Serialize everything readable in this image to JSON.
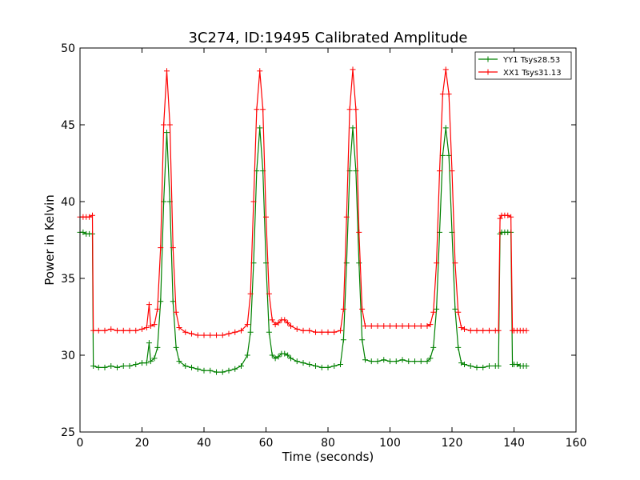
{
  "chart_data": {
    "type": "line",
    "title": "3C274, ID:19495 Calibrated Amplitude",
    "xlabel": "Time (seconds)",
    "ylabel": "Power in Kelvin",
    "xlim": [
      0,
      160
    ],
    "ylim": [
      25,
      50
    ],
    "xticks": [
      0,
      20,
      40,
      60,
      80,
      100,
      120,
      140,
      160
    ],
    "yticks": [
      25,
      30,
      35,
      40,
      45,
      50
    ],
    "grid": false,
    "legend_position": "top-right",
    "marker": "+",
    "series": [
      {
        "name": "YY1 Tsys28.53",
        "color": "#008000",
        "points": [
          [
            0,
            38.0
          ],
          [
            1,
            38.0
          ],
          [
            2,
            37.9
          ],
          [
            3,
            37.9
          ],
          [
            4,
            37.9
          ],
          [
            4.3,
            29.3
          ],
          [
            6,
            29.2
          ],
          [
            8,
            29.2
          ],
          [
            10,
            29.3
          ],
          [
            12,
            29.2
          ],
          [
            14,
            29.3
          ],
          [
            16,
            29.3
          ],
          [
            18,
            29.4
          ],
          [
            20,
            29.5
          ],
          [
            21.5,
            29.5
          ],
          [
            22.3,
            30.8
          ],
          [
            22.8,
            29.6
          ],
          [
            24,
            29.8
          ],
          [
            25,
            30.5
          ],
          [
            26,
            33.5
          ],
          [
            27,
            40.0
          ],
          [
            28,
            44.5
          ],
          [
            29,
            40.0
          ],
          [
            30,
            33.5
          ],
          [
            31,
            30.5
          ],
          [
            32,
            29.6
          ],
          [
            34,
            29.3
          ],
          [
            36,
            29.2
          ],
          [
            38,
            29.1
          ],
          [
            40,
            29.0
          ],
          [
            42,
            29.0
          ],
          [
            44,
            28.9
          ],
          [
            46,
            28.9
          ],
          [
            48,
            29.0
          ],
          [
            50,
            29.1
          ],
          [
            52,
            29.3
          ],
          [
            54,
            30.0
          ],
          [
            55,
            31.5
          ],
          [
            56,
            36.0
          ],
          [
            57,
            42.0
          ],
          [
            58,
            44.8
          ],
          [
            59,
            42.0
          ],
          [
            60,
            36.0
          ],
          [
            61,
            31.5
          ],
          [
            62,
            30.0
          ],
          [
            63,
            29.8
          ],
          [
            64,
            29.9
          ],
          [
            65,
            30.1
          ],
          [
            66,
            30.1
          ],
          [
            67,
            30.0
          ],
          [
            68,
            29.8
          ],
          [
            70,
            29.6
          ],
          [
            72,
            29.5
          ],
          [
            74,
            29.4
          ],
          [
            76,
            29.3
          ],
          [
            78,
            29.2
          ],
          [
            80,
            29.2
          ],
          [
            82,
            29.3
          ],
          [
            84,
            29.4
          ],
          [
            85,
            31.0
          ],
          [
            86,
            36.0
          ],
          [
            87,
            42.0
          ],
          [
            88,
            44.8
          ],
          [
            89,
            42.0
          ],
          [
            90,
            36.0
          ],
          [
            91,
            31.0
          ],
          [
            92,
            29.7
          ],
          [
            94,
            29.6
          ],
          [
            96,
            29.6
          ],
          [
            98,
            29.7
          ],
          [
            100,
            29.6
          ],
          [
            102,
            29.6
          ],
          [
            104,
            29.7
          ],
          [
            106,
            29.6
          ],
          [
            108,
            29.6
          ],
          [
            110,
            29.6
          ],
          [
            112,
            29.6
          ],
          [
            113,
            29.8
          ],
          [
            114,
            30.5
          ],
          [
            115,
            33.0
          ],
          [
            116,
            38.0
          ],
          [
            117,
            43.0
          ],
          [
            118,
            44.8
          ],
          [
            119,
            43.0
          ],
          [
            120,
            38.0
          ],
          [
            121,
            33.0
          ],
          [
            122,
            30.5
          ],
          [
            123,
            29.5
          ],
          [
            124,
            29.4
          ],
          [
            126,
            29.3
          ],
          [
            128,
            29.2
          ],
          [
            130,
            29.2
          ],
          [
            132,
            29.3
          ],
          [
            134,
            29.3
          ],
          [
            135,
            29.3
          ],
          [
            135.5,
            37.9
          ],
          [
            136,
            38.0
          ],
          [
            137,
            38.0
          ],
          [
            138,
            38.0
          ],
          [
            139,
            38.0
          ],
          [
            139.5,
            29.4
          ],
          [
            140,
            29.4
          ],
          [
            141,
            29.4
          ],
          [
            142,
            29.3
          ],
          [
            143,
            29.3
          ],
          [
            144,
            29.3
          ]
        ]
      },
      {
        "name": "XX1 Tsys31.13",
        "color": "#ff0000",
        "points": [
          [
            0,
            39.0
          ],
          [
            1,
            39.0
          ],
          [
            2,
            39.0
          ],
          [
            3,
            39.0
          ],
          [
            4,
            39.1
          ],
          [
            4.3,
            31.6
          ],
          [
            6,
            31.6
          ],
          [
            8,
            31.6
          ],
          [
            10,
            31.7
          ],
          [
            12,
            31.6
          ],
          [
            14,
            31.6
          ],
          [
            16,
            31.6
          ],
          [
            18,
            31.6
          ],
          [
            20,
            31.7
          ],
          [
            21.5,
            31.8
          ],
          [
            22.3,
            33.3
          ],
          [
            22.8,
            31.9
          ],
          [
            24,
            32.0
          ],
          [
            25,
            33.0
          ],
          [
            26,
            37.0
          ],
          [
            27,
            45.0
          ],
          [
            28,
            48.5
          ],
          [
            29,
            45.0
          ],
          [
            30,
            37.0
          ],
          [
            31,
            32.8
          ],
          [
            32,
            31.8
          ],
          [
            34,
            31.5
          ],
          [
            36,
            31.4
          ],
          [
            38,
            31.3
          ],
          [
            40,
            31.3
          ],
          [
            42,
            31.3
          ],
          [
            44,
            31.3
          ],
          [
            46,
            31.3
          ],
          [
            48,
            31.4
          ],
          [
            50,
            31.5
          ],
          [
            52,
            31.6
          ],
          [
            54,
            32.0
          ],
          [
            55,
            34.0
          ],
          [
            56,
            40.0
          ],
          [
            57,
            46.0
          ],
          [
            58,
            48.5
          ],
          [
            59,
            46.0
          ],
          [
            60,
            39.0
          ],
          [
            61,
            34.0
          ],
          [
            62,
            32.3
          ],
          [
            63,
            32.0
          ],
          [
            64,
            32.1
          ],
          [
            65,
            32.3
          ],
          [
            66,
            32.3
          ],
          [
            67,
            32.1
          ],
          [
            68,
            31.9
          ],
          [
            70,
            31.7
          ],
          [
            72,
            31.6
          ],
          [
            74,
            31.6
          ],
          [
            76,
            31.5
          ],
          [
            78,
            31.5
          ],
          [
            80,
            31.5
          ],
          [
            82,
            31.5
          ],
          [
            84,
            31.6
          ],
          [
            85,
            33.0
          ],
          [
            86,
            39.0
          ],
          [
            87,
            46.0
          ],
          [
            88,
            48.6
          ],
          [
            89,
            46.0
          ],
          [
            90,
            38.0
          ],
          [
            91,
            33.0
          ],
          [
            92,
            31.9
          ],
          [
            94,
            31.9
          ],
          [
            96,
            31.9
          ],
          [
            98,
            31.9
          ],
          [
            100,
            31.9
          ],
          [
            102,
            31.9
          ],
          [
            104,
            31.9
          ],
          [
            106,
            31.9
          ],
          [
            108,
            31.9
          ],
          [
            110,
            31.9
          ],
          [
            112,
            31.9
          ],
          [
            113,
            32.0
          ],
          [
            114,
            32.8
          ],
          [
            115,
            36.0
          ],
          [
            116,
            42.0
          ],
          [
            117,
            47.0
          ],
          [
            118,
            48.6
          ],
          [
            119,
            47.0
          ],
          [
            120,
            42.0
          ],
          [
            121,
            36.0
          ],
          [
            122,
            32.8
          ],
          [
            123,
            31.8
          ],
          [
            124,
            31.7
          ],
          [
            126,
            31.6
          ],
          [
            128,
            31.6
          ],
          [
            130,
            31.6
          ],
          [
            132,
            31.6
          ],
          [
            134,
            31.6
          ],
          [
            135,
            31.6
          ],
          [
            135.5,
            38.9
          ],
          [
            136,
            39.1
          ],
          [
            137,
            39.1
          ],
          [
            138,
            39.1
          ],
          [
            139,
            39.0
          ],
          [
            139.5,
            31.6
          ],
          [
            140,
            31.6
          ],
          [
            141,
            31.6
          ],
          [
            142,
            31.6
          ],
          [
            143,
            31.6
          ],
          [
            144,
            31.6
          ]
        ]
      }
    ]
  }
}
